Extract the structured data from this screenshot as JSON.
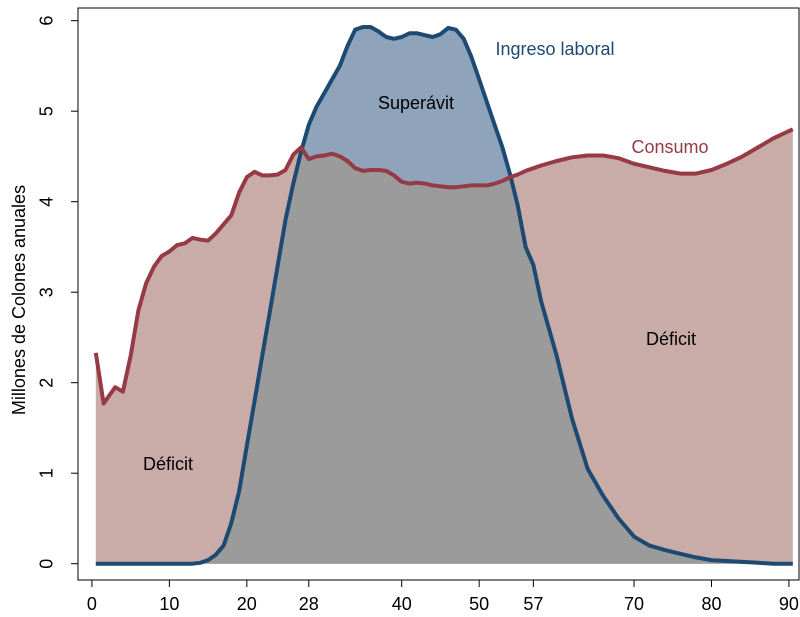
{
  "chart_data": {
    "type": "area",
    "y_label": "Millones de Colones anuales",
    "x": [
      0.5,
      1.5,
      3,
      4,
      5,
      6,
      7,
      8,
      9,
      10,
      11,
      12,
      13,
      14,
      15,
      16,
      17,
      18,
      19,
      20,
      21,
      22,
      23,
      24,
      25,
      26,
      27,
      28,
      29,
      30,
      31,
      32,
      33,
      34,
      35,
      36,
      37,
      38,
      39,
      40,
      41,
      42,
      43,
      44,
      45,
      46,
      47,
      48,
      49,
      50,
      51,
      52,
      53,
      54,
      55,
      56,
      57,
      58,
      60,
      62,
      64,
      66,
      68,
      70,
      72,
      74,
      76,
      78,
      80,
      82,
      84,
      86,
      88,
      90,
      90.5
    ],
    "series": [
      {
        "name": "Consumo",
        "color": "#963a45",
        "fill": "#c9aca8",
        "values": [
          2.33,
          1.77,
          1.95,
          1.9,
          2.3,
          2.8,
          3.1,
          3.28,
          3.4,
          3.45,
          3.52,
          3.54,
          3.6,
          3.58,
          3.57,
          3.65,
          3.75,
          3.85,
          4.1,
          4.27,
          4.33,
          4.29,
          4.29,
          4.3,
          4.35,
          4.52,
          4.6,
          4.47,
          4.5,
          4.51,
          4.53,
          4.5,
          4.45,
          4.37,
          4.34,
          4.35,
          4.35,
          4.34,
          4.29,
          4.22,
          4.2,
          4.21,
          4.2,
          4.18,
          4.17,
          4.16,
          4.16,
          4.17,
          4.18,
          4.18,
          4.18,
          4.2,
          4.23,
          4.27,
          4.3,
          4.34,
          4.37,
          4.4,
          4.45,
          4.49,
          4.51,
          4.51,
          4.48,
          4.42,
          4.38,
          4.34,
          4.31,
          4.31,
          4.35,
          4.42,
          4.5,
          4.6,
          4.7,
          4.78,
          4.8
        ]
      },
      {
        "name": "Ingreso laboral",
        "color": "#1d4a73",
        "fill": "#8fa3bb",
        "values": [
          0,
          0,
          0,
          0,
          0,
          0,
          0,
          0,
          0,
          0,
          0,
          0,
          0,
          0.01,
          0.04,
          0.1,
          0.2,
          0.45,
          0.8,
          1.3,
          1.8,
          2.3,
          2.8,
          3.3,
          3.8,
          4.2,
          4.55,
          4.85,
          5.05,
          5.2,
          5.35,
          5.5,
          5.72,
          5.9,
          5.93,
          5.93,
          5.88,
          5.82,
          5.8,
          5.82,
          5.86,
          5.86,
          5.84,
          5.82,
          5.85,
          5.92,
          5.9,
          5.8,
          5.6,
          5.35,
          5.1,
          4.85,
          4.6,
          4.3,
          3.95,
          3.5,
          3.3,
          2.9,
          2.3,
          1.6,
          1.05,
          0.75,
          0.5,
          0.3,
          0.2,
          0.15,
          0.11,
          0.07,
          0.04,
          0.03,
          0.02,
          0.01,
          0,
          0,
          0
        ]
      }
    ],
    "overlap_color": "#9b9b9b",
    "annotations": [
      "Superávit",
      "Déficit",
      "Déficit"
    ],
    "xlim": [
      -1.8,
      91.3
    ],
    "xticks": [
      0,
      10,
      20,
      28,
      40,
      50,
      57,
      70,
      80,
      90
    ],
    "ylim": [
      -0.18,
      6.14
    ],
    "yticks": [
      0,
      1,
      2,
      3,
      4,
      5,
      6
    ]
  }
}
